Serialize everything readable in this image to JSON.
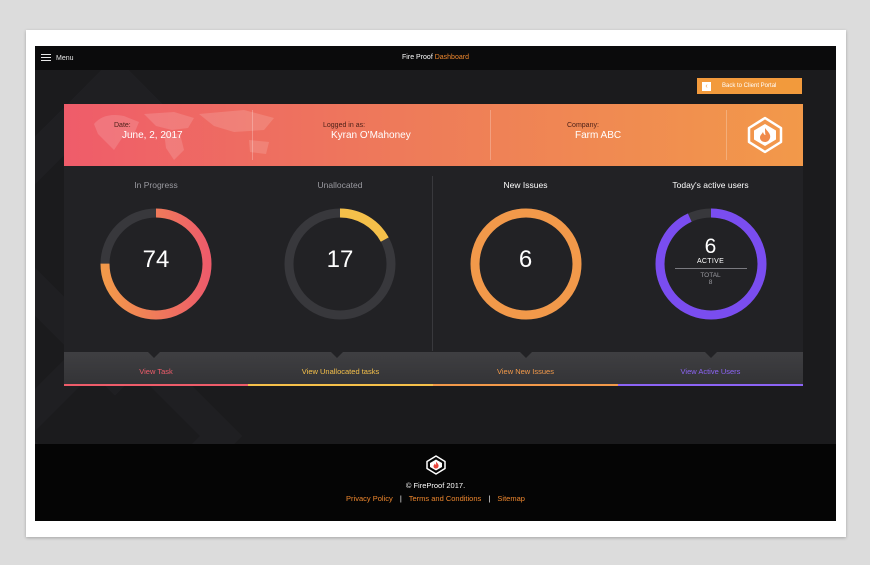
{
  "header": {
    "menu_label": "Menu",
    "title_main": "Fire Proof",
    "title_accent": "Dashboard"
  },
  "portal_button": {
    "label": "Back to Client Portal",
    "icon": "chevron-left-icon"
  },
  "banner": {
    "date_label": "Date:",
    "date_value": "June, 2, 2017",
    "user_label": "Logged in as:",
    "user_value": "Kyran O'Mahoney",
    "company_label": "Company:",
    "company_value": "Farm ABC",
    "logo_icon": "fireproof-shield-icon"
  },
  "widgets": [
    {
      "title": "In Progress",
      "value": "74",
      "progress": 0.75,
      "gradient": [
        "#f2994a",
        "#ee5c6a"
      ],
      "link": "View Task",
      "link_color": "#ee5c6a"
    },
    {
      "title": "Unallocated",
      "value": "17",
      "progress": 0.17,
      "gradient": [
        "#f5c04a",
        "#f5c04a"
      ],
      "link": "View Unallocated tasks",
      "link_color": "#f5c04a"
    },
    {
      "title": "New Issues",
      "value": "6",
      "progress": 1.0,
      "gradient": [
        "#f2994a",
        "#f2994a"
      ],
      "link": "View New Issues",
      "link_color": "#f2994a"
    },
    {
      "title": "Today's active users",
      "value": "6",
      "active_label": "ACTIVE",
      "total_label": "TOTAL",
      "total_value": "8",
      "progress": 0.93,
      "gradient": [
        "#7a4df0",
        "#7a4df0"
      ],
      "link": "View Active Users",
      "link_color": "#8c64f5"
    }
  ],
  "footer": {
    "copyright": "© FireProof 2017.",
    "links": [
      "Privacy Policy",
      "Terms and Conditions",
      "Sitemap"
    ],
    "logo_icon": "fireproof-shield-icon"
  },
  "colors": {
    "accent": "#f0882e",
    "background": "#1b1b1d",
    "panel": "#222225"
  }
}
